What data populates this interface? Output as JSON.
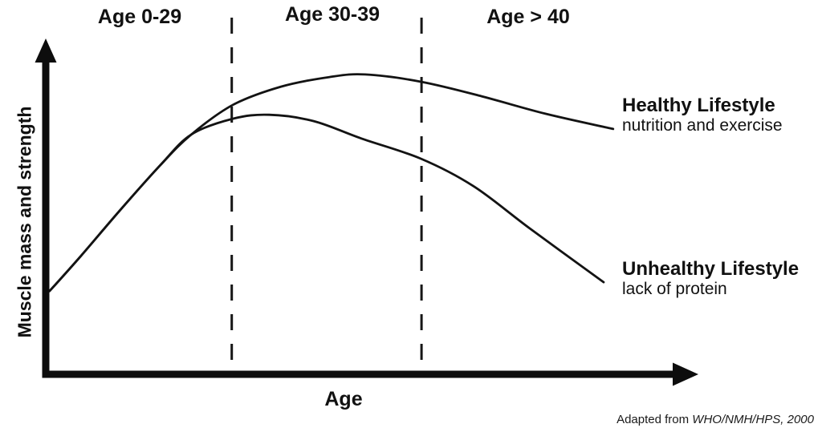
{
  "page": {
    "background": "#ffffff",
    "ink": "#111111"
  },
  "chart_data": {
    "type": "line",
    "title": "",
    "xlabel": "Age",
    "ylabel": "Muscle mass and strength",
    "grid": false,
    "numeric_ticks": false,
    "legend_position": "right-of-curve-ends",
    "age_bands": [
      {
        "label": "Age 0-29",
        "x_start": 0.0,
        "x_end": 0.294
      },
      {
        "label": "Age 30-39",
        "x_start": 0.294,
        "x_end": 0.594
      },
      {
        "label": "Age > 40",
        "x_start": 0.594,
        "x_end": 1.0
      }
    ],
    "y_range_note": "qualitative (no numeric scale); values are fraction of plot height",
    "series": [
      {
        "name": "Healthy Lifestyle",
        "subtitle": "nutrition and exercise",
        "points": [
          [
            0.006,
            0.252
          ],
          [
            0.055,
            0.357
          ],
          [
            0.118,
            0.498
          ],
          [
            0.181,
            0.633
          ],
          [
            0.23,
            0.726
          ],
          [
            0.296,
            0.816
          ],
          [
            0.372,
            0.871
          ],
          [
            0.448,
            0.9
          ],
          [
            0.505,
            0.908
          ],
          [
            0.593,
            0.886
          ],
          [
            0.689,
            0.842
          ],
          [
            0.79,
            0.789
          ],
          [
            0.897,
            0.743
          ]
        ]
      },
      {
        "name": "Unhealthy Lifestyle",
        "subtitle": "lack of protein",
        "points": [
          [
            0.006,
            0.252
          ],
          [
            0.055,
            0.357
          ],
          [
            0.118,
            0.498
          ],
          [
            0.181,
            0.633
          ],
          [
            0.23,
            0.726
          ],
          [
            0.296,
            0.774
          ],
          [
            0.353,
            0.786
          ],
          [
            0.423,
            0.767
          ],
          [
            0.499,
            0.714
          ],
          [
            0.593,
            0.653
          ],
          [
            0.676,
            0.57
          ],
          [
            0.765,
            0.442
          ],
          [
            0.882,
            0.279
          ]
        ]
      }
    ],
    "attribution": {
      "prefix": "Adapted from ",
      "source": "WHO/NMH/HPS, 2000"
    }
  }
}
